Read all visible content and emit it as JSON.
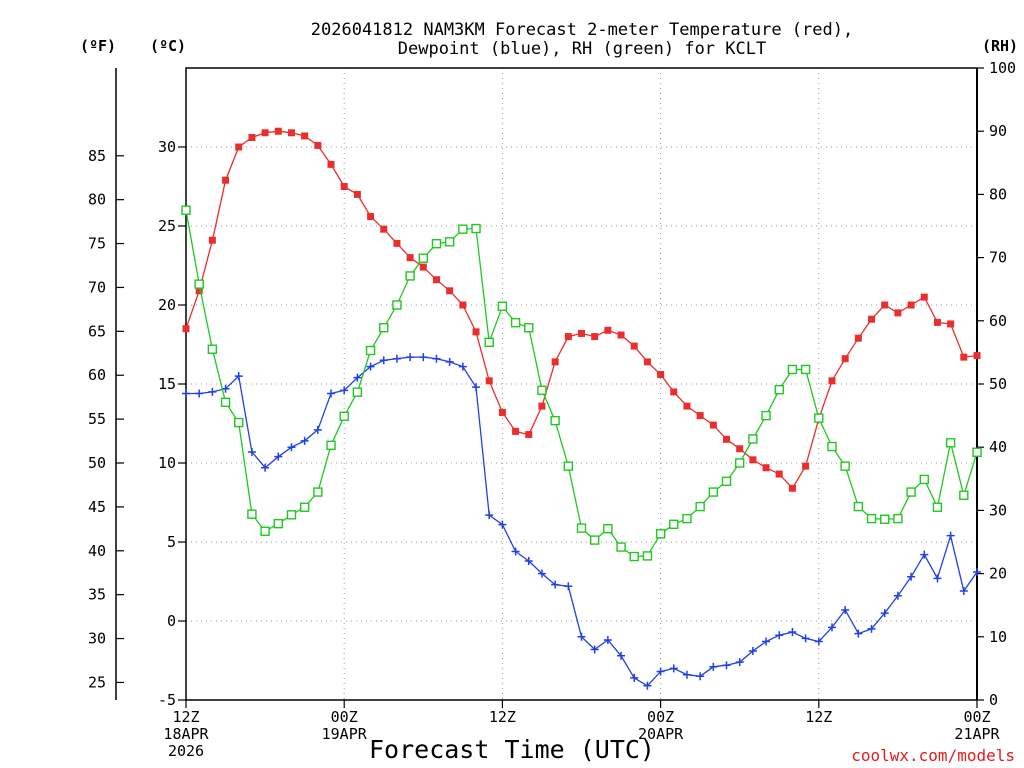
{
  "chart_data": {
    "type": "line",
    "title": [
      "2026041812 NAM3KM Forecast 2-meter Temperature (red),",
      "Dewpoint (blue), RH (green) for KCLT"
    ],
    "xlabel": "Forecast Time (UTC)",
    "credit": "coolwx.com/models",
    "units": {
      "f": "(ºF)",
      "c": "(ºC)",
      "rh": "(RH)"
    },
    "xlim": [
      0,
      60
    ],
    "ylim_c": [
      -5,
      35
    ],
    "ylim_rh": [
      0,
      100
    ],
    "x_ticks": [
      {
        "x": 0,
        "lines": [
          "12Z",
          "18APR",
          "2026"
        ]
      },
      {
        "x": 12,
        "lines": [
          "00Z",
          "19APR"
        ]
      },
      {
        "x": 24,
        "lines": [
          "12Z"
        ]
      },
      {
        "x": 36,
        "lines": [
          "00Z",
          "20APR"
        ]
      },
      {
        "x": 48,
        "lines": [
          "12Z"
        ]
      },
      {
        "x": 60,
        "lines": [
          "00Z",
          "21APR"
        ]
      }
    ],
    "c_ticks": [
      -5,
      0,
      5,
      10,
      15,
      20,
      25,
      30
    ],
    "f_ticks": [
      25,
      30,
      35,
      40,
      45,
      50,
      55,
      60,
      65,
      70,
      75,
      80,
      85
    ],
    "rh_ticks": [
      0,
      10,
      20,
      30,
      40,
      50,
      60,
      70,
      80,
      90,
      100
    ],
    "x": [
      0,
      1,
      2,
      3,
      4,
      5,
      6,
      7,
      8,
      9,
      10,
      11,
      12,
      13,
      14,
      15,
      16,
      17,
      18,
      19,
      20,
      21,
      22,
      23,
      24,
      25,
      26,
      27,
      28,
      29,
      30,
      31,
      32,
      33,
      34,
      35,
      36,
      37,
      38,
      39,
      40,
      41,
      42,
      43,
      44,
      45,
      46,
      47,
      48,
      49,
      50,
      51,
      52,
      53,
      54,
      55,
      56,
      57,
      58,
      59,
      60
    ],
    "series": [
      {
        "name": "Temperature",
        "axis": "c",
        "color": "#ea2e2e",
        "marker": "filled-square",
        "values": [
          18.5,
          20.9,
          24.1,
          27.9,
          30.0,
          30.6,
          30.9,
          31.0,
          30.9,
          30.7,
          30.1,
          28.9,
          27.5,
          27.0,
          25.6,
          24.8,
          23.9,
          23.0,
          22.4,
          21.6,
          20.9,
          20.0,
          18.3,
          15.2,
          13.2,
          12.0,
          11.8,
          13.6,
          16.4,
          18.0,
          18.2,
          18.0,
          18.4,
          18.1,
          17.4,
          16.4,
          15.6,
          14.5,
          13.6,
          13.0,
          12.4,
          11.5,
          10.9,
          10.2,
          9.7,
          9.3,
          8.4,
          9.8,
          12.8,
          15.2,
          16.6,
          17.9,
          19.1,
          20.0,
          19.5,
          20.0,
          20.5,
          18.9,
          18.8,
          16.7,
          16.8
        ]
      },
      {
        "name": "Dewpoint",
        "axis": "c",
        "color": "#2040e8",
        "marker": "plus",
        "values": [
          14.4,
          14.4,
          14.5,
          14.7,
          15.5,
          10.7,
          9.7,
          10.4,
          11.0,
          11.4,
          12.1,
          14.4,
          14.6,
          15.4,
          16.1,
          16.5,
          16.6,
          16.7,
          16.7,
          16.6,
          16.4,
          16.1,
          14.8,
          6.7,
          6.1,
          4.4,
          3.8,
          3.0,
          2.3,
          2.2,
          -1.0,
          -1.8,
          -1.2,
          -2.2,
          -3.6,
          -4.1,
          -3.2,
          -3.0,
          -3.4,
          -3.5,
          -2.9,
          -2.8,
          -2.6,
          -1.9,
          -1.3,
          -0.9,
          -0.7,
          -1.1,
          -1.3,
          -0.4,
          0.7,
          -0.8,
          -0.5,
          0.5,
          1.6,
          2.8,
          4.2,
          2.7,
          5.4,
          1.9,
          3.1
        ]
      },
      {
        "name": "RH",
        "axis": "rh",
        "color": "#1fc81f",
        "marker": "open-square",
        "values": [
          77.5,
          65.8,
          55.5,
          47.1,
          43.9,
          29.4,
          26.7,
          27.9,
          29.3,
          30.5,
          32.9,
          40.3,
          44.9,
          48.7,
          55.3,
          58.9,
          62.5,
          67.1,
          69.9,
          72.2,
          72.5,
          74.5,
          74.6,
          56.6,
          62.3,
          59.7,
          58.9,
          49.0,
          44.2,
          37.0,
          27.2,
          25.3,
          27.1,
          24.2,
          22.7,
          22.8,
          26.3,
          27.8,
          28.7,
          30.6,
          32.9,
          34.6,
          37.5,
          41.3,
          45.0,
          49.1,
          52.3,
          52.3,
          44.6,
          40.1,
          37.0,
          30.6,
          28.7,
          28.6,
          28.7,
          32.9,
          34.9,
          30.5,
          40.7,
          32.4,
          39.2
        ]
      }
    ]
  }
}
